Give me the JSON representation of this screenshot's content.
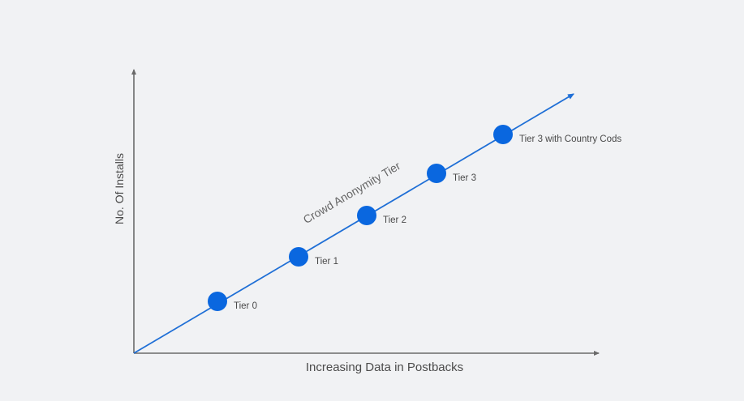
{
  "diagram": {
    "x_axis_label": "Increasing Data in Postbacks",
    "y_axis_label": "No. Of Installs",
    "trend_label": "Crowd Anonymity Tier",
    "tiers": [
      {
        "label": "Tier 0"
      },
      {
        "label": "Tier 1"
      },
      {
        "label": "Tier 2"
      },
      {
        "label": "Tier 3"
      },
      {
        "label": "Tier 3 with Country Cods"
      }
    ],
    "colors": {
      "background": "#f1f2f4",
      "axis": "#6a6a6a",
      "trend_line": "#1f6fd6",
      "tier_dot": "#0a67df"
    }
  }
}
